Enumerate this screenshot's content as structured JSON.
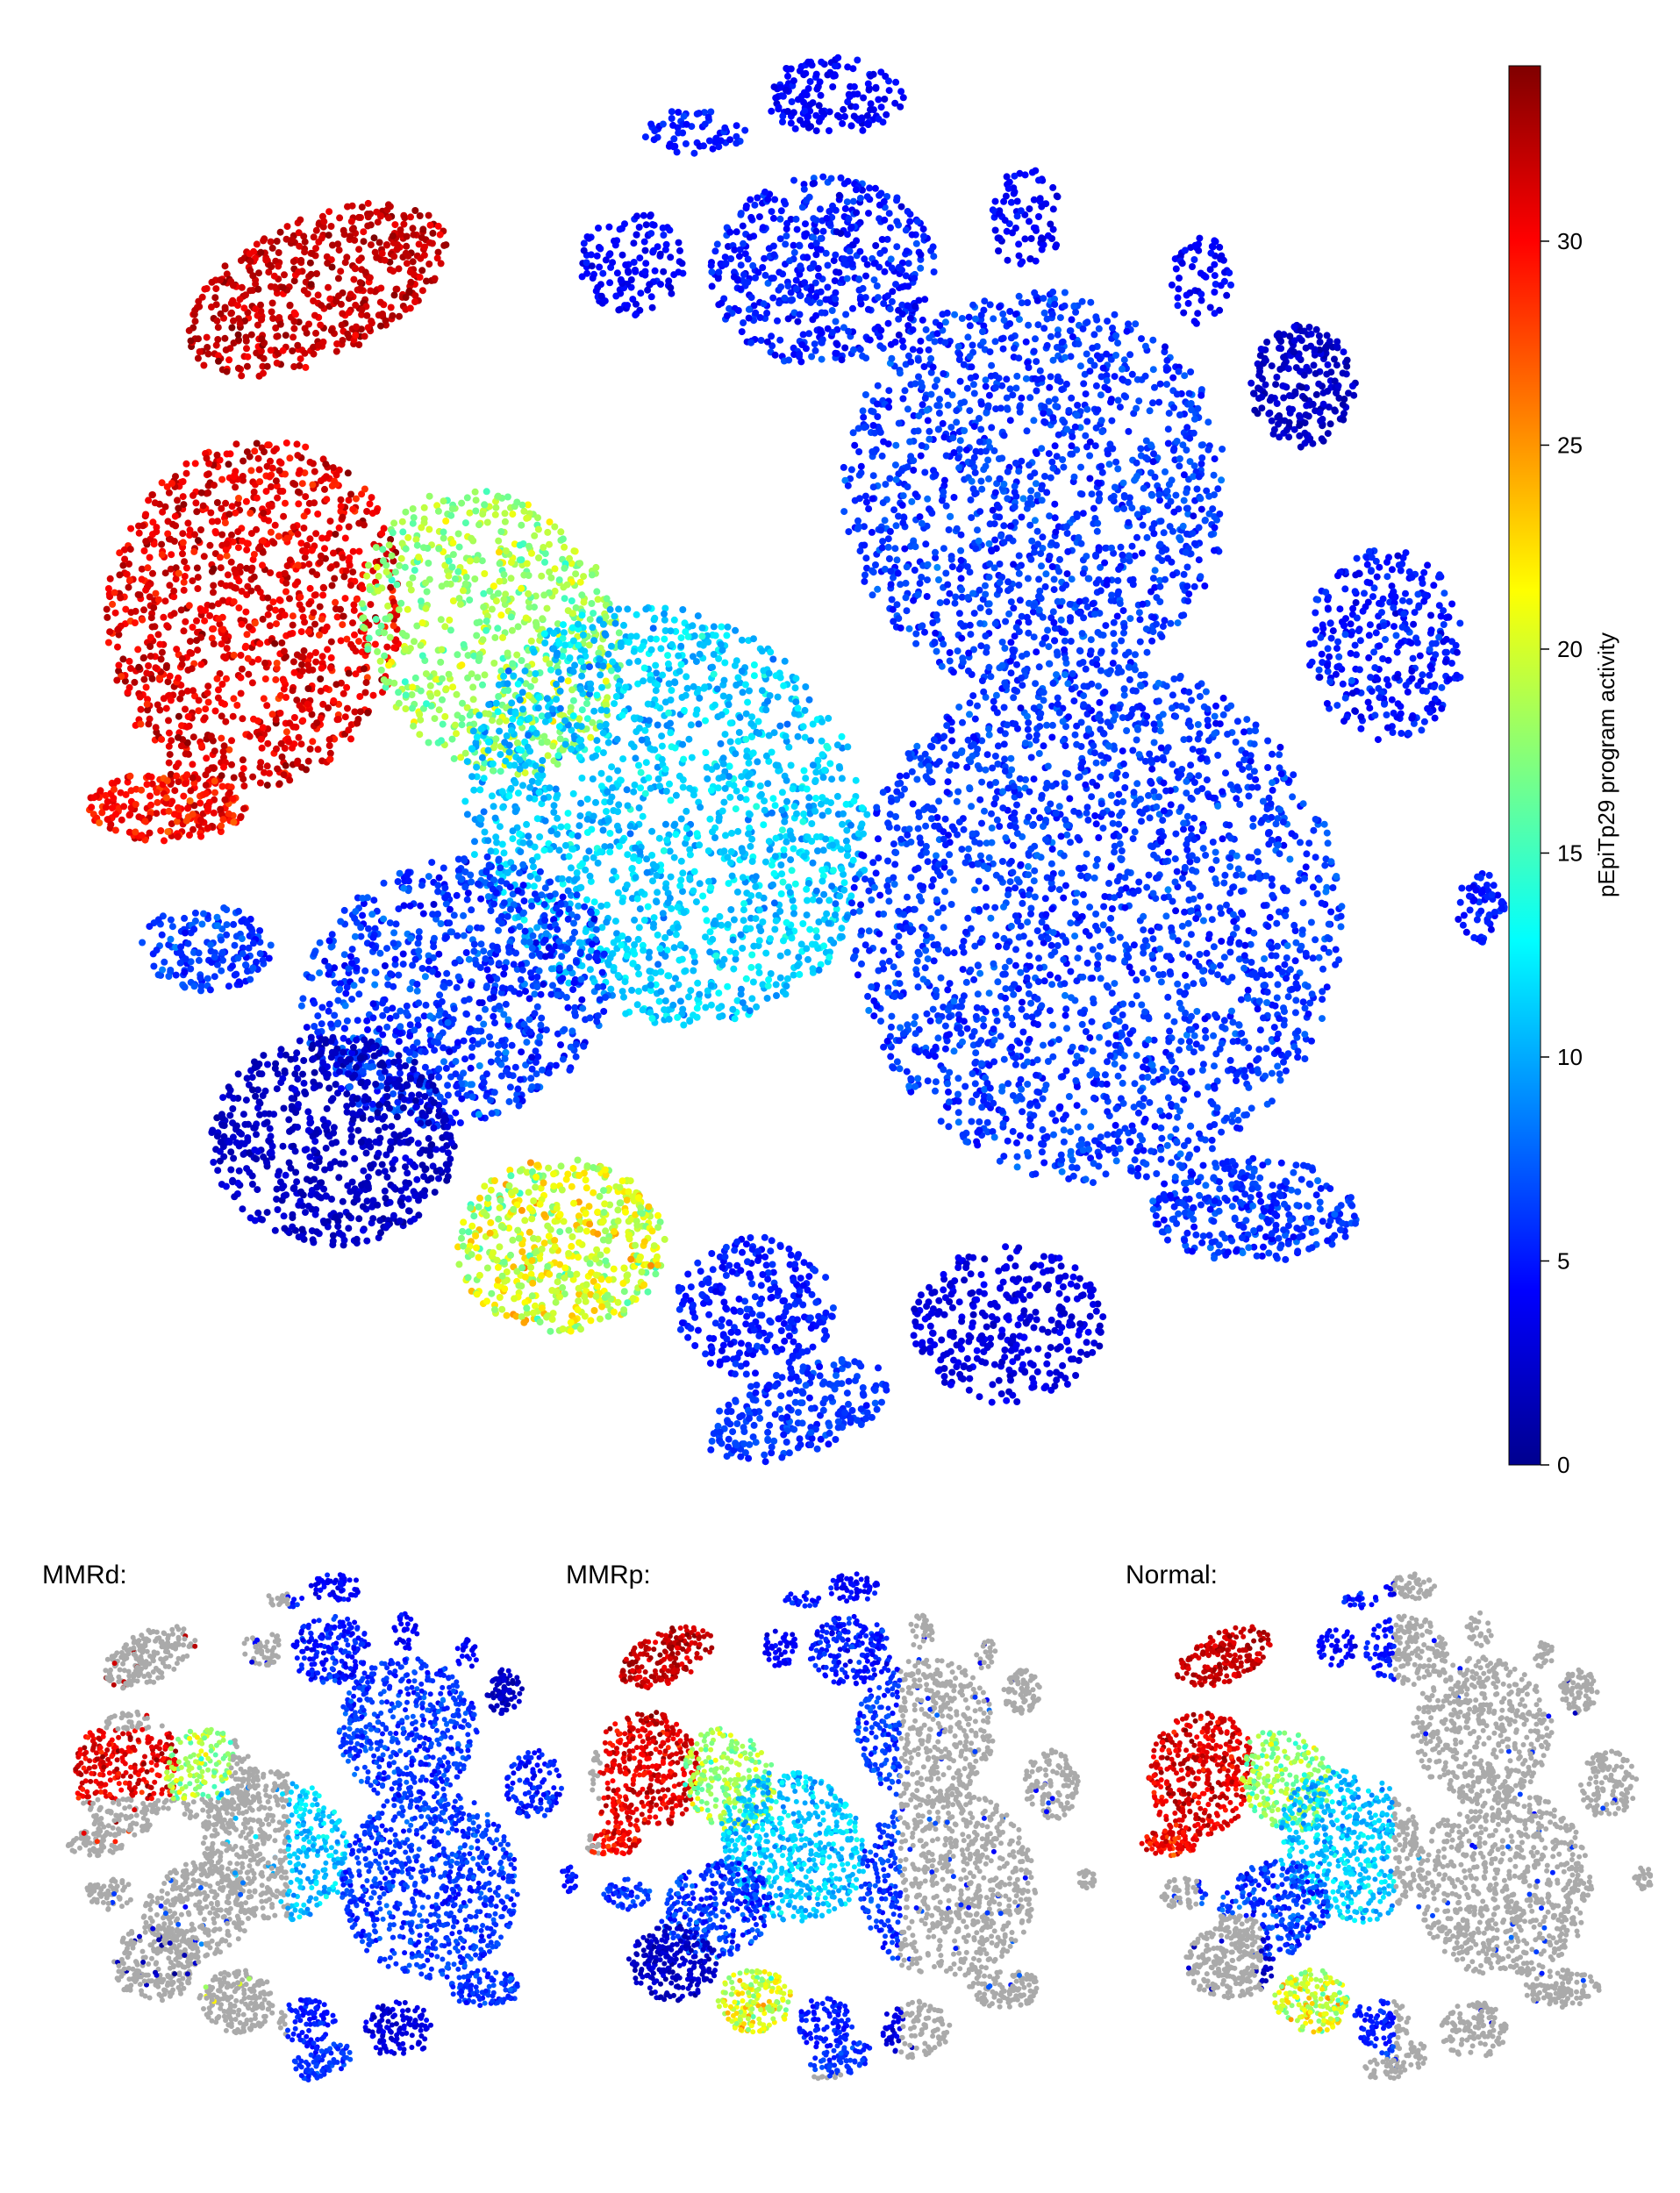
{
  "chart_data": [
    {
      "type": "scatter",
      "panel": "main",
      "title": "",
      "colorbar": {
        "label": "pEpiTp29 program activity",
        "range": [
          0,
          34.3
        ],
        "ticks": [
          "0",
          "5",
          "10",
          "15",
          "20",
          "25",
          "30"
        ],
        "colormap": "jet"
      },
      "axes_visible": false,
      "clusters": [
        {
          "name": "upper-left tip",
          "activity_mean": 32
        },
        {
          "name": "left dense mass",
          "activity_mean": 31
        },
        {
          "name": "lower-left tongue",
          "activity_mean": 30
        },
        {
          "name": "central green band",
          "activity_mean": 18
        },
        {
          "name": "central cyan body",
          "activity_mean": 11
        },
        {
          "name": "bottom-center blob",
          "activity_mean": 20
        },
        {
          "name": "right clusters",
          "activity_mean": 6
        },
        {
          "name": "outer satellite clusters",
          "activity_mean": 4
        }
      ]
    },
    {
      "type": "scatter",
      "panel": "MMRd",
      "title": "MMRd:",
      "background_color": "#aaaaaa",
      "highlight": "right side and upper-left edge colored; rest gray"
    },
    {
      "type": "scatter",
      "panel": "MMRp",
      "title": "MMRp:",
      "background_color": "#aaaaaa",
      "highlight": "left and center colored; right side gray"
    },
    {
      "type": "scatter",
      "panel": "Normal",
      "title": "Normal:",
      "background_color": "#aaaaaa",
      "highlight": "left and center colored in red/yellow/cyan; right gray"
    }
  ]
}
